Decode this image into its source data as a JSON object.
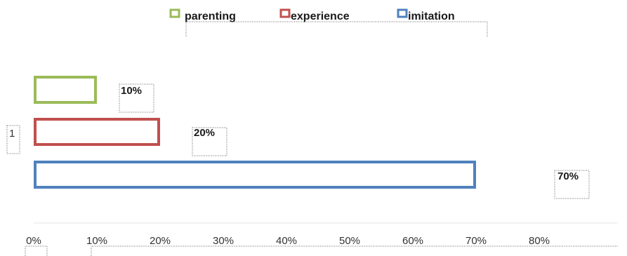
{
  "chart_data": {
    "type": "bar",
    "orientation": "horizontal",
    "categories": [
      "1"
    ],
    "series": [
      {
        "name": "parenting",
        "values": [
          10
        ],
        "color": "#9bbb59"
      },
      {
        "name": "experience",
        "values": [
          20
        ],
        "color": "#c0504d"
      },
      {
        "name": "imitation",
        "values": [
          70
        ],
        "color": "#4f81bd"
      }
    ],
    "data_labels": [
      "10%",
      "20%",
      "70%"
    ],
    "x_ticks": [
      "0%",
      "10%",
      "20%",
      "30%",
      "40%",
      "50%",
      "60%",
      "70%",
      "80%"
    ],
    "xlim": [
      0,
      80
    ],
    "title": "",
    "xlabel": "",
    "ylabel": "",
    "legend_position": "top",
    "grid": false,
    "bar_style": "outline"
  }
}
